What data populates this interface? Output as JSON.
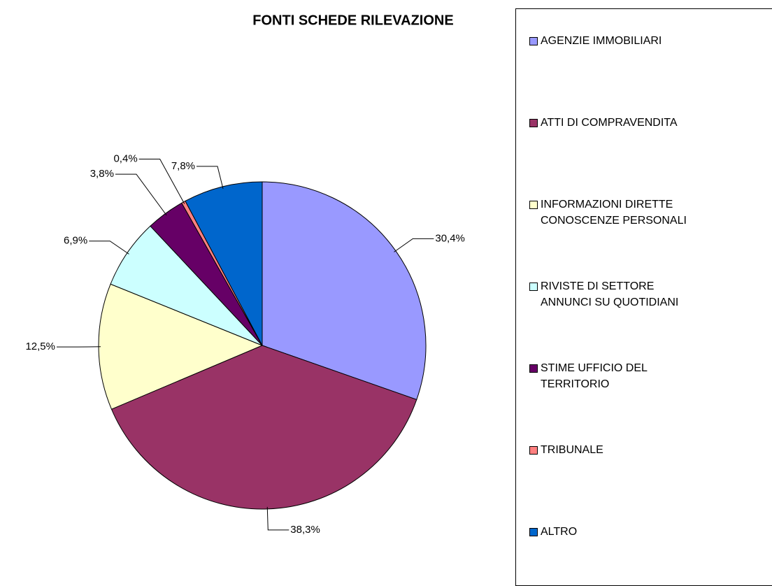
{
  "chart_data": {
    "type": "pie",
    "title": "FONTI SCHEDE RILEVAZIONE",
    "categories": [
      "AGENZIE IMMOBILIARI",
      "ATTI DI COMPRAVENDITA",
      "INFORMAZIONI DIRETTE\nCONOSCENZE PERSONALI",
      "RIVISTE DI SETTORE\nANNUNCI SU QUOTIDIANI",
      "STIME UFFICIO DEL\nTERRITORIO",
      "TRIBUNALE",
      "ALTRO"
    ],
    "values": [
      30.4,
      38.3,
      12.5,
      6.9,
      3.8,
      0.4,
      7.8
    ],
    "value_labels": [
      "30,4%",
      "38,3%",
      "12,5%",
      "6,9%",
      "3,8%",
      "0,4%",
      "7,8%"
    ],
    "colors": [
      "#9999ff",
      "#993366",
      "#ffffcc",
      "#ccffff",
      "#660066",
      "#ff8080",
      "#0066cc"
    ],
    "legend": "right"
  }
}
